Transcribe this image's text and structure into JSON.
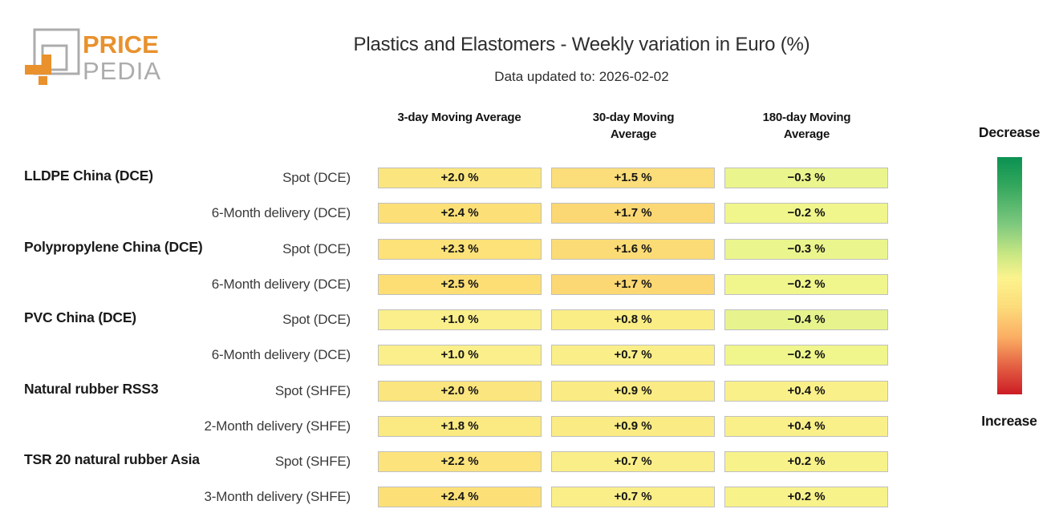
{
  "logo": {
    "text_top": "PRICE",
    "text_bottom": "PEDIA",
    "orange": "#E8912D",
    "gray": "#ACACAC"
  },
  "header": {
    "title": "Plastics and Elastomers - Weekly variation in Euro (%)",
    "subtitle": "Data updated to: 2026-02-02"
  },
  "table": {
    "column_headers": [
      "3-day Moving Average",
      "30-day Moving Average",
      "180-day Moving Average"
    ],
    "cell_border": "#BFBFBF",
    "rows": [
      {
        "group": "LLDPE China (DCE)",
        "label": "Spot (DCE)",
        "cells": [
          {
            "text": "+2.0 %",
            "bg": "#FBE57E"
          },
          {
            "text": "+1.5 %",
            "bg": "#FBDD79"
          },
          {
            "text": "−0.3 %",
            "bg": "#EBF58D"
          }
        ]
      },
      {
        "group": "",
        "label": "6-Month delivery (DCE)",
        "cells": [
          {
            "text": "+2.4 %",
            "bg": "#FCE077"
          },
          {
            "text": "+1.7 %",
            "bg": "#FBD873"
          },
          {
            "text": "−0.2 %",
            "bg": "#F0F68C"
          }
        ]
      },
      {
        "group": "Polypropylene China (DCE)",
        "label": "Spot (DCE)",
        "cells": [
          {
            "text": "+2.3 %",
            "bg": "#FCE279"
          },
          {
            "text": "+1.6 %",
            "bg": "#FBDB76"
          },
          {
            "text": "−0.3 %",
            "bg": "#EBF58D"
          }
        ]
      },
      {
        "group": "",
        "label": "6-Month delivery (DCE)",
        "cells": [
          {
            "text": "+2.5 %",
            "bg": "#FCDE75"
          },
          {
            "text": "+1.7 %",
            "bg": "#FBD873"
          },
          {
            "text": "−0.2 %",
            "bg": "#F0F68C"
          }
        ]
      },
      {
        "group": "PVC China (DCE)",
        "label": "Spot (DCE)",
        "cells": [
          {
            "text": "+1.0 %",
            "bg": "#FAEF8A"
          },
          {
            "text": "+0.8 %",
            "bg": "#FAED86"
          },
          {
            "text": "−0.4 %",
            "bg": "#E7F48E"
          }
        ]
      },
      {
        "group": "",
        "label": "6-Month delivery (DCE)",
        "cells": [
          {
            "text": "+1.0 %",
            "bg": "#FAEF8A"
          },
          {
            "text": "+0.7 %",
            "bg": "#FAEE88"
          },
          {
            "text": "−0.2 %",
            "bg": "#F0F68C"
          }
        ]
      },
      {
        "group": "Natural rubber RSS3",
        "label": "Spot (SHFE)",
        "cells": [
          {
            "text": "+2.0 %",
            "bg": "#FBE57E"
          },
          {
            "text": "+0.9 %",
            "bg": "#FAEB84"
          },
          {
            "text": "+0.4 %",
            "bg": "#FAF08A"
          }
        ]
      },
      {
        "group": "",
        "label": "2-Month delivery (SHFE)",
        "cells": [
          {
            "text": "+1.8 %",
            "bg": "#FBE982"
          },
          {
            "text": "+0.9 %",
            "bg": "#FAEB84"
          },
          {
            "text": "+0.4 %",
            "bg": "#FAF08A"
          }
        ]
      },
      {
        "group": "TSR 20 natural rubber Asia",
        "label": "Spot (SHFE)",
        "cells": [
          {
            "text": "+2.2 %",
            "bg": "#FCE37B"
          },
          {
            "text": "+0.7 %",
            "bg": "#FAEE88"
          },
          {
            "text": "+0.2 %",
            "bg": "#F8F28B"
          }
        ]
      },
      {
        "group": "",
        "label": "3-Month delivery (SHFE)",
        "cells": [
          {
            "text": "+2.4 %",
            "bg": "#FCE077"
          },
          {
            "text": "+0.7 %",
            "bg": "#FAEE88"
          },
          {
            "text": "+0.2 %",
            "bg": "#F8F28B"
          }
        ]
      }
    ]
  },
  "legend": {
    "decrease_label": "Decrease",
    "increase_label": "Increase",
    "gradient_stops": [
      "#0B9152 0%",
      "#33A75D 12%",
      "#7CC87E 28%",
      "#C9E783 41%",
      "#FCF38D 51%",
      "#FCDC7A 63%",
      "#FBAE63 76%",
      "#E25B41 89%",
      "#CC1B25 100%"
    ]
  },
  "chart_data": {
    "type": "heatmap",
    "title": "Plastics and Elastomers - Weekly variation in Euro (%)",
    "subtitle": "Data updated to: 2026-02-02",
    "columns": [
      "3-day Moving Average",
      "30-day Moving Average",
      "180-day Moving Average"
    ],
    "unit": "% weekly variation in Euro",
    "rows": [
      {
        "group": "LLDPE China (DCE)",
        "label": "Spot (DCE)",
        "values": [
          2.0,
          1.5,
          -0.3
        ]
      },
      {
        "group": "LLDPE China (DCE)",
        "label": "6-Month delivery (DCE)",
        "values": [
          2.4,
          1.7,
          -0.2
        ]
      },
      {
        "group": "Polypropylene China (DCE)",
        "label": "Spot (DCE)",
        "values": [
          2.3,
          1.6,
          -0.3
        ]
      },
      {
        "group": "Polypropylene China (DCE)",
        "label": "6-Month delivery (DCE)",
        "values": [
          2.5,
          1.7,
          -0.2
        ]
      },
      {
        "group": "PVC China (DCE)",
        "label": "Spot (DCE)",
        "values": [
          1.0,
          0.8,
          -0.4
        ]
      },
      {
        "group": "PVC China (DCE)",
        "label": "6-Month delivery (DCE)",
        "values": [
          1.0,
          0.7,
          -0.2
        ]
      },
      {
        "group": "Natural rubber RSS3",
        "label": "Spot (SHFE)",
        "values": [
          2.0,
          0.9,
          0.4
        ]
      },
      {
        "group": "Natural rubber RSS3",
        "label": "2-Month delivery (SHFE)",
        "values": [
          1.8,
          0.9,
          0.4
        ]
      },
      {
        "group": "TSR 20 natural rubber Asia",
        "label": "Spot (SHFE)",
        "values": [
          2.2,
          0.7,
          0.2
        ]
      },
      {
        "group": "TSR 20 natural rubber Asia",
        "label": "3-Month delivery (SHFE)",
        "values": [
          2.4,
          0.7,
          0.2
        ]
      }
    ],
    "colormap": "green (decrease) to yellow to red (increase)",
    "legend": {
      "top": "Decrease",
      "bottom": "Increase"
    }
  }
}
